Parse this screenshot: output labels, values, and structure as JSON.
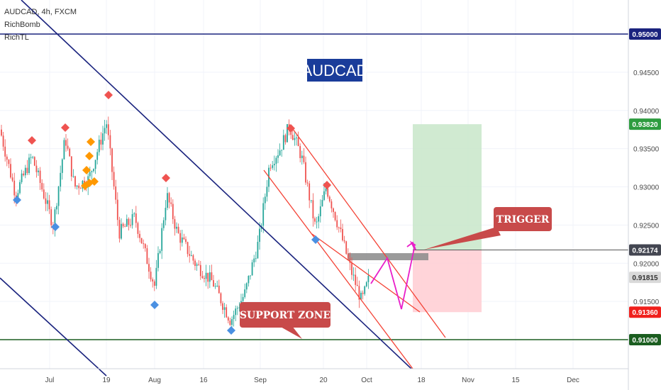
{
  "header": {
    "symbol_line": "AUDCAD, 4h, FXCM",
    "indicator_1": "RichBomb",
    "indicator_2": "RichTL"
  },
  "chart_data": {
    "type": "candlestick",
    "title": "AUDCAD",
    "x_tick_labels": [
      "Jul",
      "19",
      "Aug",
      "16",
      "Sep",
      "20",
      "Oct",
      "18",
      "Nov",
      "15",
      "Dec"
    ],
    "y_tick_labels": [
      "0.94500",
      "0.94000",
      "0.93500",
      "0.93000",
      "0.92500",
      "0.92000",
      "0.91500"
    ],
    "ylim": [
      0.903,
      0.959
    ],
    "price_badges": [
      {
        "label": "0.95000",
        "value": 0.95,
        "color": "#1a237e"
      },
      {
        "label": "0.93820",
        "value": 0.9382,
        "color": "#2e9c3f"
      },
      {
        "label": "0.92174",
        "value": 0.92174,
        "color": "#434651"
      },
      {
        "label": "0.91815",
        "value": 0.91815,
        "color": "#d9d9d9"
      },
      {
        "label": "0.91360",
        "value": 0.9136,
        "color": "#f0201c"
      },
      {
        "label": "0.91000",
        "value": 0.91,
        "color": "#1b5e20"
      }
    ],
    "horizontal_levels": [
      {
        "value": 0.95,
        "color": "#1a237e"
      },
      {
        "value": 0.91,
        "color": "#1b5e20"
      }
    ],
    "annotations": {
      "support_zone": "SUPPORT ZONE",
      "trigger": "TRIGGER"
    },
    "trade_box": {
      "entry": 0.92174,
      "take_profit": 0.9382,
      "stop_loss": 0.9136
    },
    "colors": {
      "bull": "#26a69a",
      "bear": "#ef5350",
      "channel": "#1a237e",
      "fork": "#f44336",
      "path": "#e91ec9",
      "label_bg": "#c84a4a",
      "title_bg": "#1a3c9a"
    }
  }
}
